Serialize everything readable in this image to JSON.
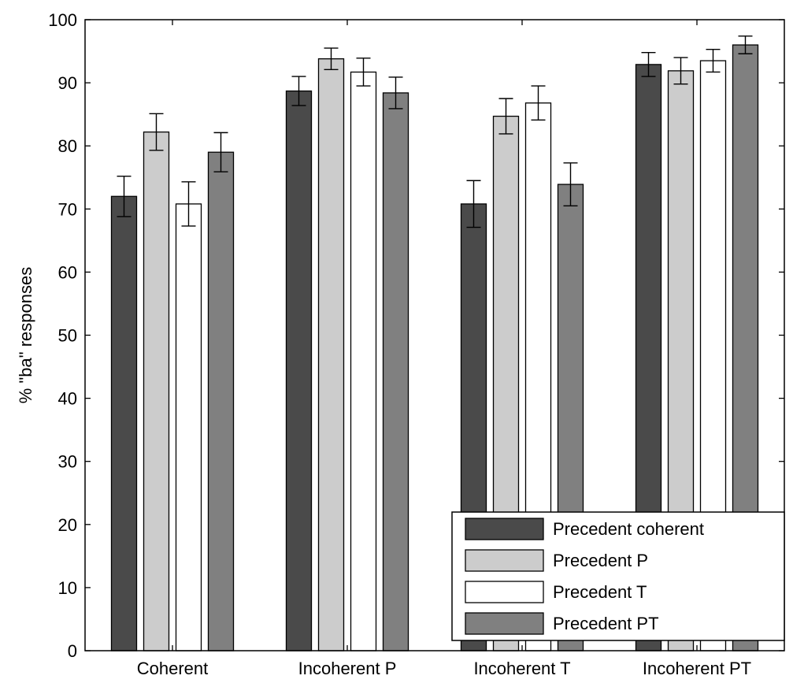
{
  "chart_data": {
    "type": "bar",
    "title": "",
    "xlabel": "",
    "ylabel": "% \"ba\" responses",
    "ylim": [
      0,
      100
    ],
    "yticks": [
      0,
      10,
      20,
      30,
      40,
      50,
      60,
      70,
      80,
      90,
      100
    ],
    "grid": false,
    "legend_position": "bottom-right",
    "categories": [
      "Coherent",
      "Incoherent P",
      "Incoherent T",
      "Incoherent PT"
    ],
    "series": [
      {
        "name": "Precedent coherent",
        "color": "#4a4a4a",
        "values": [
          72,
          88.7,
          70.8,
          92.9
        ],
        "errors": [
          3.2,
          2.3,
          3.7,
          1.9
        ]
      },
      {
        "name": "Precedent P",
        "color": "#cccccc",
        "values": [
          82.2,
          93.8,
          84.7,
          91.9
        ],
        "errors": [
          2.9,
          1.7,
          2.8,
          2.1
        ]
      },
      {
        "name": "Precedent T",
        "color": "#ffffff",
        "values": [
          70.8,
          91.7,
          86.8,
          93.5
        ],
        "errors": [
          3.5,
          2.2,
          2.7,
          1.8
        ]
      },
      {
        "name": "Precedent PT",
        "color": "#808080",
        "values": [
          79,
          88.4,
          73.9,
          96
        ],
        "errors": [
          3.1,
          2.5,
          3.4,
          1.4
        ]
      }
    ]
  }
}
